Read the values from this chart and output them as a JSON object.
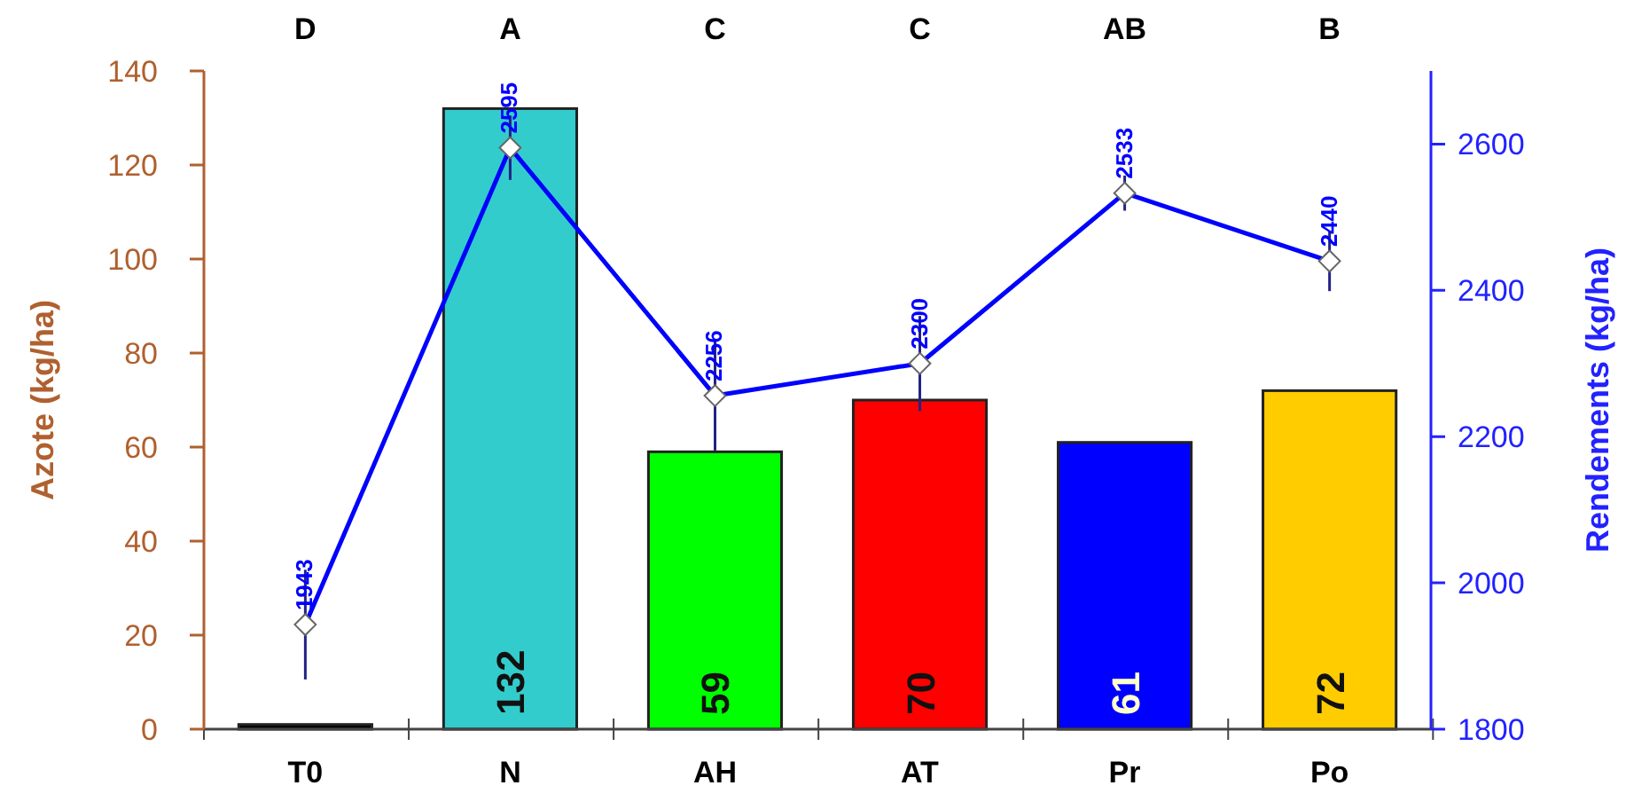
{
  "chart_data": {
    "type": "bar",
    "ylabel": "Azote (kg/ha)",
    "y2label": "Rendements (kg/ha)",
    "categories": [
      "T0",
      "N",
      "AH",
      "AT",
      "Pr",
      "Po"
    ],
    "series": [
      {
        "values": [
          1,
          132,
          59,
          70,
          61,
          72
        ],
        "colors": [
          "#000000",
          "#33cccc",
          "#00ff00",
          "#ff0000",
          "#0000ff",
          "#ffcc00"
        ],
        "value_labels": [
          null,
          "132",
          "59",
          "70",
          "61",
          "72"
        ]
      },
      {
        "type": "line",
        "axis": "y2",
        "color": "#0000ff",
        "values": [
          1943,
          2595,
          2256,
          2300,
          2533,
          2440
        ],
        "errors": [
          75,
          44,
          75,
          65,
          24,
          41
        ],
        "value_labels": [
          "1943",
          "2595",
          "2256",
          "2300",
          "2533",
          "2440"
        ],
        "marker": "diamond"
      }
    ],
    "ylim": [
      0,
      140
    ],
    "yticks": [
      0,
      20,
      40,
      60,
      80,
      100,
      120,
      140
    ],
    "y2lim": [
      1800,
      2700
    ],
    "y2ticks": [
      1800,
      2000,
      2200,
      2400,
      2600
    ],
    "annotations": [
      "D",
      "A",
      "C",
      "C",
      "AB",
      "B"
    ]
  }
}
